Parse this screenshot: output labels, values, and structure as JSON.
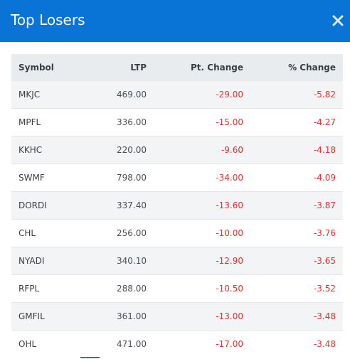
{
  "header": {
    "title": "Top Losers",
    "close_icon": "close-icon",
    "background_color": "#0a73d6"
  },
  "table": {
    "columns": [
      "Symbol",
      "LTP",
      "Pt. Change",
      "% Change"
    ],
    "rows": [
      {
        "symbol": "MKJC",
        "ltp": "469.00",
        "pt_change": "-29.00",
        "pct_change": "-5.82"
      },
      {
        "symbol": "MPFL",
        "ltp": "336.00",
        "pt_change": "-15.00",
        "pct_change": "-4.27"
      },
      {
        "symbol": "KKHC",
        "ltp": "220.00",
        "pt_change": "-9.60",
        "pct_change": "-4.18"
      },
      {
        "symbol": "SWMF",
        "ltp": "798.00",
        "pt_change": "-34.00",
        "pct_change": "-4.09"
      },
      {
        "symbol": "DORDI",
        "ltp": "337.40",
        "pt_change": "-13.60",
        "pct_change": "-3.87"
      },
      {
        "symbol": "CHL",
        "ltp": "256.00",
        "pt_change": "-10.00",
        "pct_change": "-3.76"
      },
      {
        "symbol": "NYADI",
        "ltp": "340.10",
        "pt_change": "-12.90",
        "pct_change": "-3.65"
      },
      {
        "symbol": "RFPL",
        "ltp": "288.00",
        "pt_change": "-10.50",
        "pct_change": "-3.52"
      },
      {
        "symbol": "GMFIL",
        "ltp": "361.00",
        "pt_change": "-13.00",
        "pct_change": "-3.48"
      },
      {
        "symbol": "OHL",
        "ltp": "471.00",
        "pt_change": "-17.00",
        "pct_change": "-3.48"
      }
    ],
    "negative_color": "#e0322c"
  }
}
